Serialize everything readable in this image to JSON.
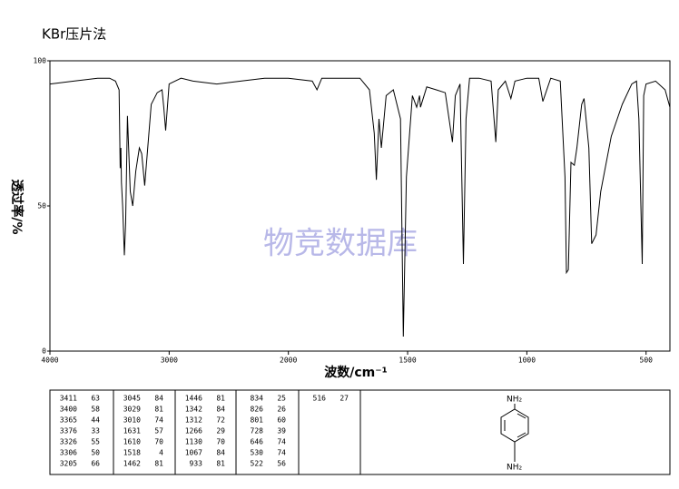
{
  "chart_data": {
    "type": "line",
    "title": "KBr压片法",
    "watermark": "物竞数据库",
    "xlabel": "波数/cm⁻¹",
    "ylabel": "透过率/%",
    "x": [
      4000,
      3800,
      3600,
      3500,
      3450,
      3420,
      3411,
      3405,
      3400,
      3390,
      3376,
      3365,
      3350,
      3326,
      3306,
      3280,
      3250,
      3230,
      3205,
      3150,
      3100,
      3060,
      3045,
      3029,
      3000,
      2900,
      2800,
      2600,
      2400,
      2200,
      2000,
      1900,
      1880,
      1860,
      1700,
      1660,
      1640,
      1631,
      1620,
      1610,
      1590,
      1560,
      1530,
      1518,
      1505,
      1480,
      1462,
      1450,
      1446,
      1420,
      1380,
      1342,
      1312,
      1300,
      1280,
      1266,
      1255,
      1240,
      1200,
      1150,
      1130,
      1120,
      1090,
      1067,
      1050,
      1000,
      950,
      933,
      900,
      860,
      840,
      834,
      826,
      815,
      801,
      790,
      770,
      760,
      740,
      728,
      710,
      690,
      646,
      600,
      560,
      540,
      530,
      522,
      516,
      510,
      500,
      460,
      420,
      400
    ],
    "values": [
      92,
      93,
      94,
      94,
      93,
      90,
      63,
      70,
      58,
      50,
      33,
      44,
      81,
      55,
      50,
      62,
      70,
      68,
      57,
      85,
      89,
      90,
      84,
      76,
      92,
      94,
      93,
      92,
      93,
      94,
      94,
      93,
      90,
      94,
      94,
      90,
      75,
      59,
      80,
      70,
      88,
      90,
      80,
      5,
      60,
      88,
      84,
      88,
      84,
      91,
      90,
      89,
      72,
      88,
      92,
      30,
      80,
      94,
      94,
      93,
      72,
      90,
      93,
      87,
      93,
      94,
      94,
      86,
      94,
      93,
      60,
      27,
      28,
      65,
      64,
      70,
      85,
      87,
      70,
      37,
      40,
      55,
      74,
      85,
      92,
      93,
      80,
      50,
      30,
      88,
      92,
      93,
      90,
      84
    ],
    "color": "#000000",
    "xlim": [
      4000,
      400
    ],
    "x_break": 2000,
    "xticks": [
      4000,
      3000,
      2000,
      1500,
      1000,
      500
    ],
    "ylim": [
      0,
      100
    ],
    "yticks": [
      0,
      50,
      100
    ]
  },
  "peak_table": {
    "rows": [
      [
        3411,
        63
      ],
      [
        3400,
        58
      ],
      [
        3365,
        44
      ],
      [
        3376,
        33
      ],
      [
        3326,
        55
      ],
      [
        3306,
        50
      ],
      [
        3205,
        66
      ],
      [
        3045,
        84
      ],
      [
        3029,
        81
      ],
      [
        3010,
        74
      ],
      [
        1631,
        57
      ],
      [
        1610,
        70
      ],
      [
        1518,
        4
      ],
      [
        1462,
        81
      ],
      [
        1446,
        81
      ],
      [
        1342,
        84
      ],
      [
        1312,
        72
      ],
      [
        1266,
        29
      ],
      [
        1130,
        70
      ],
      [
        1067,
        84
      ],
      [
        933,
        81
      ],
      [
        834,
        25
      ],
      [
        826,
        26
      ],
      [
        801,
        60
      ],
      [
        728,
        39
      ],
      [
        646,
        74
      ],
      [
        530,
        74
      ],
      [
        522,
        56
      ],
      [
        516,
        27
      ]
    ]
  },
  "structure": {
    "top": "NH₂",
    "bottom": "NH₂"
  }
}
